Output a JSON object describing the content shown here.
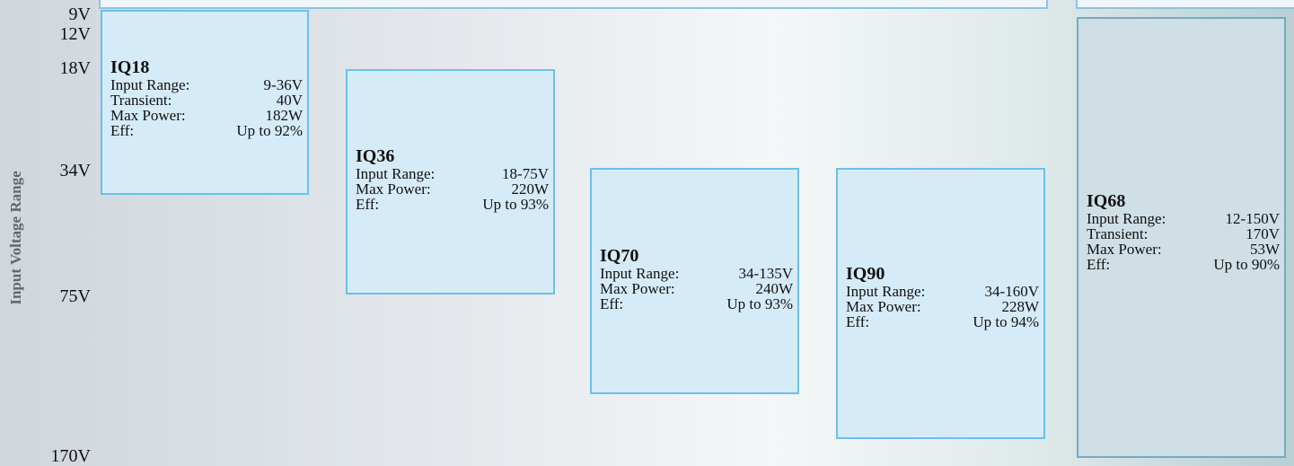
{
  "y_axis": {
    "title": "Input Voltage Range",
    "ticks": [
      "9V",
      "12V",
      "18V",
      "34V",
      "75V",
      "170V"
    ]
  },
  "products": [
    {
      "name": "IQ18",
      "specs": [
        [
          "Input Range:",
          "9-36V"
        ],
        [
          "Transient:",
          "40V"
        ],
        [
          "Max Power:",
          "182W"
        ],
        [
          "Eff:",
          "Up to 92%"
        ]
      ]
    },
    {
      "name": "IQ36",
      "specs": [
        [
          "Input Range:",
          "18-75V"
        ],
        [
          "Max Power:",
          "220W"
        ],
        [
          "Eff:",
          "Up to 93%"
        ]
      ]
    },
    {
      "name": "IQ70",
      "specs": [
        [
          "Input Range:",
          "34-135V"
        ],
        [
          "Max Power:",
          "240W"
        ],
        [
          "Eff:",
          "Up to 93%"
        ]
      ]
    },
    {
      "name": "IQ90",
      "specs": [
        [
          "Input Range:",
          "34-160V"
        ],
        [
          "Max Power:",
          "228W"
        ],
        [
          "Eff:",
          "Up to 94%"
        ]
      ]
    },
    {
      "name": "IQ68",
      "specs": [
        [
          "Input Range:",
          "12-150V"
        ],
        [
          "Transient:",
          "170V"
        ],
        [
          "Max Power:",
          "53W"
        ],
        [
          "Eff:",
          "Up to 90%"
        ]
      ]
    }
  ]
}
